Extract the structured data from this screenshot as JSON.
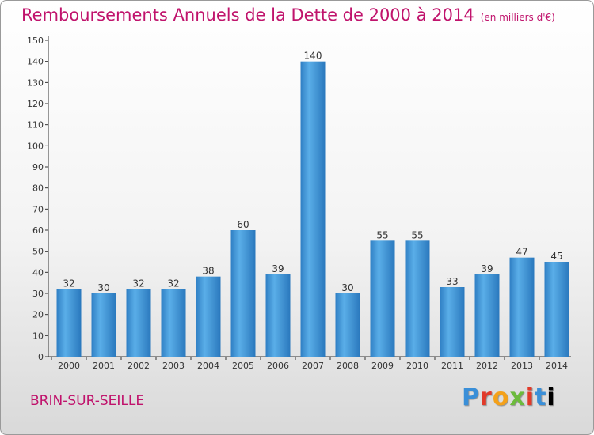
{
  "chart_data": {
    "type": "bar",
    "title": "Remboursements Annuels de la Dette de 2000 à 2014",
    "unit": "(en milliers d'€)",
    "categories": [
      "2000",
      "2001",
      "2002",
      "2003",
      "2004",
      "2005",
      "2006",
      "2007",
      "2008",
      "2009",
      "2010",
      "2011",
      "2012",
      "2013",
      "2014"
    ],
    "values": [
      32,
      30,
      32,
      32,
      38,
      60,
      39,
      140,
      30,
      55,
      55,
      33,
      39,
      47,
      45
    ],
    "ylim": [
      0,
      150
    ],
    "yticks": [
      0,
      10,
      20,
      30,
      40,
      50,
      60,
      70,
      80,
      90,
      100,
      110,
      120,
      130,
      140,
      150
    ],
    "grid": false,
    "bar_color": "#3a8fd8"
  },
  "commune": "BRIN-SUR-SEILLE",
  "logo": {
    "letters": [
      "P",
      "r",
      "o",
      "x",
      "i",
      "t",
      "i"
    ]
  }
}
